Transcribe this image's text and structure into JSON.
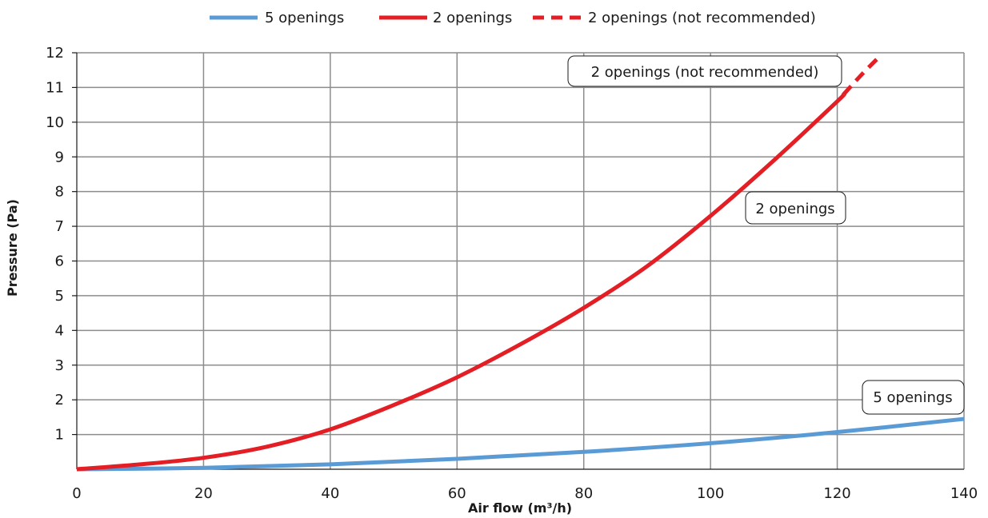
{
  "chart_data": {
    "type": "line",
    "title": "",
    "xlabel": "Air flow (m³/h)",
    "ylabel": "Pressure (Pa)",
    "xlim": [
      0,
      140
    ],
    "ylim": [
      0,
      12
    ],
    "x_ticks": [
      0,
      20,
      40,
      60,
      80,
      100,
      120,
      140
    ],
    "y_ticks": [
      1,
      2,
      3,
      4,
      5,
      6,
      7,
      8,
      9,
      10,
      11,
      12
    ],
    "grid": true,
    "legend_position": "top",
    "series": [
      {
        "name": "5 openings",
        "color": "#5b9bd5",
        "style": "solid",
        "x": [
          0,
          20,
          40,
          60,
          80,
          100,
          120,
          140
        ],
        "y": [
          0.0,
          0.04,
          0.14,
          0.3,
          0.5,
          0.75,
          1.07,
          1.45
        ]
      },
      {
        "name": "2 openings",
        "color": "#e31e24",
        "style": "solid",
        "x": [
          0,
          10,
          20,
          30,
          40,
          50,
          60,
          70,
          80,
          90,
          100,
          110,
          120,
          121
        ],
        "y": [
          0.0,
          0.14,
          0.33,
          0.65,
          1.15,
          1.85,
          2.65,
          3.6,
          4.65,
          5.85,
          7.3,
          8.9,
          10.6,
          10.8
        ]
      },
      {
        "name": "2 openings (not recommended)",
        "color": "#e31e24",
        "style": "dashed",
        "x": [
          121,
          124,
          127
        ],
        "y": [
          10.8,
          11.4,
          11.95
        ]
      }
    ],
    "annotations": [
      {
        "text": "2 openings (not recommended)",
        "series": 2
      },
      {
        "text": "2 openings",
        "series": 1
      },
      {
        "text": "5 openings",
        "series": 0
      }
    ]
  }
}
